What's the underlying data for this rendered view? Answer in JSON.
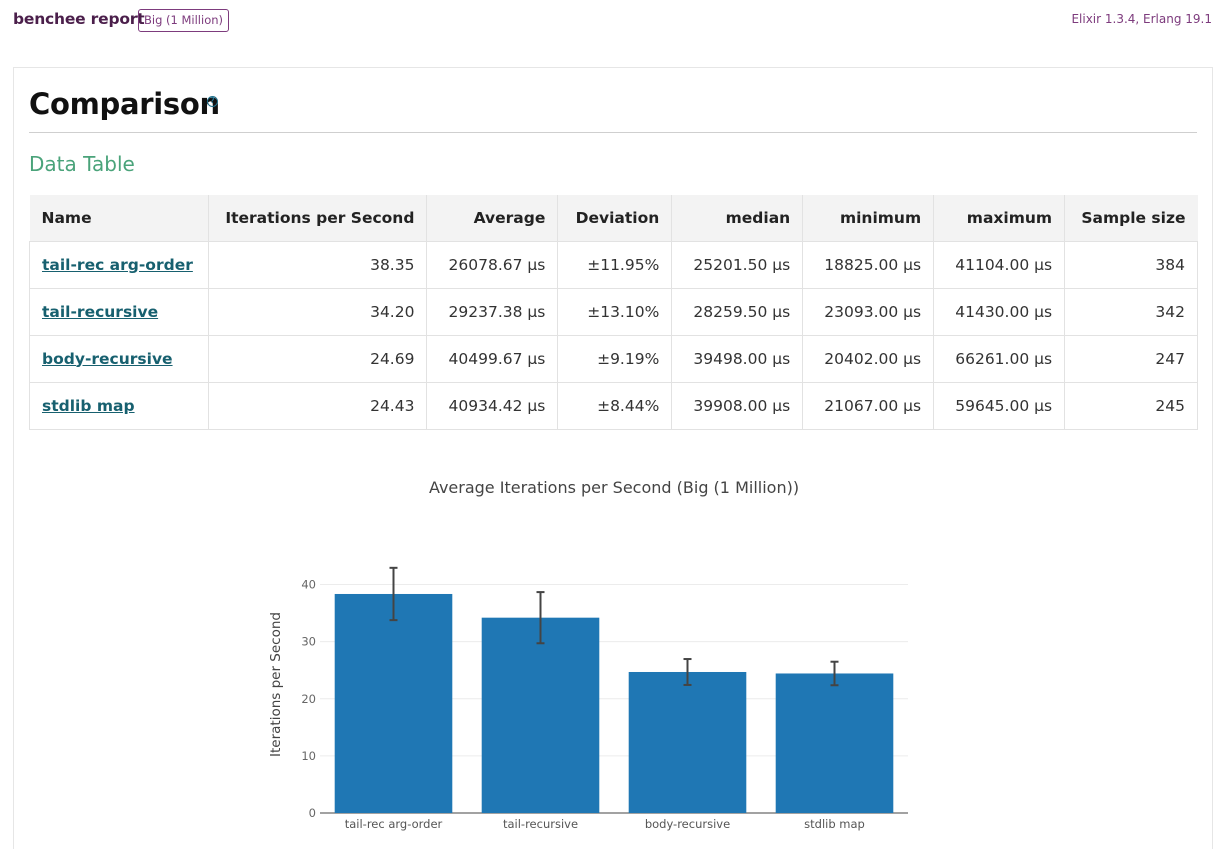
{
  "header": {
    "brand": "benchee report",
    "badge": "Big (1 Million)",
    "env": "Elixir 1.3.4, Erlang 19.1"
  },
  "comparison": {
    "title": "Comparison",
    "help_icon": "question-circle-icon",
    "subtitle": "Data Table"
  },
  "table": {
    "columns": [
      "Name",
      "Iterations per Second",
      "Average",
      "Deviation",
      "median",
      "minimum",
      "maximum",
      "Sample size"
    ],
    "rows": [
      [
        "tail-rec arg-order",
        "38.35",
        "26078.67 μs",
        "±11.95%",
        "25201.50 μs",
        "18825.00 μs",
        "41104.00 μs",
        "384"
      ],
      [
        "tail-recursive",
        "34.20",
        "29237.38 μs",
        "±13.10%",
        "28259.50 μs",
        "23093.00 μs",
        "41430.00 μs",
        "342"
      ],
      [
        "body-recursive",
        "24.69",
        "40499.67 μs",
        "±9.19%",
        "39498.00 μs",
        "20402.00 μs",
        "66261.00 μs",
        "247"
      ],
      [
        "stdlib map",
        "24.43",
        "40934.42 μs",
        "±8.44%",
        "39908.00 μs",
        "21067.00 μs",
        "59645.00 μs",
        "245"
      ]
    ]
  },
  "colors": {
    "bar": "#1f77b4",
    "brand": "#4b1f4b",
    "link": "#17606f",
    "subtitle": "#4aa37a"
  },
  "chart_data": {
    "type": "bar",
    "title": "Average Iterations per Second (Big (1 Million))",
    "ylabel": "Iterations per Second",
    "xlabel": "",
    "categories": [
      "tail-rec arg-order",
      "tail-recursive",
      "body-recursive",
      "stdlib map"
    ],
    "values": [
      38.35,
      34.2,
      24.69,
      24.43
    ],
    "error": [
      4.58,
      4.48,
      2.27,
      2.06
    ],
    "ylim": [
      0,
      45
    ],
    "yticks": [
      0,
      10,
      20,
      30,
      40
    ],
    "grid": true,
    "legend": "none"
  }
}
